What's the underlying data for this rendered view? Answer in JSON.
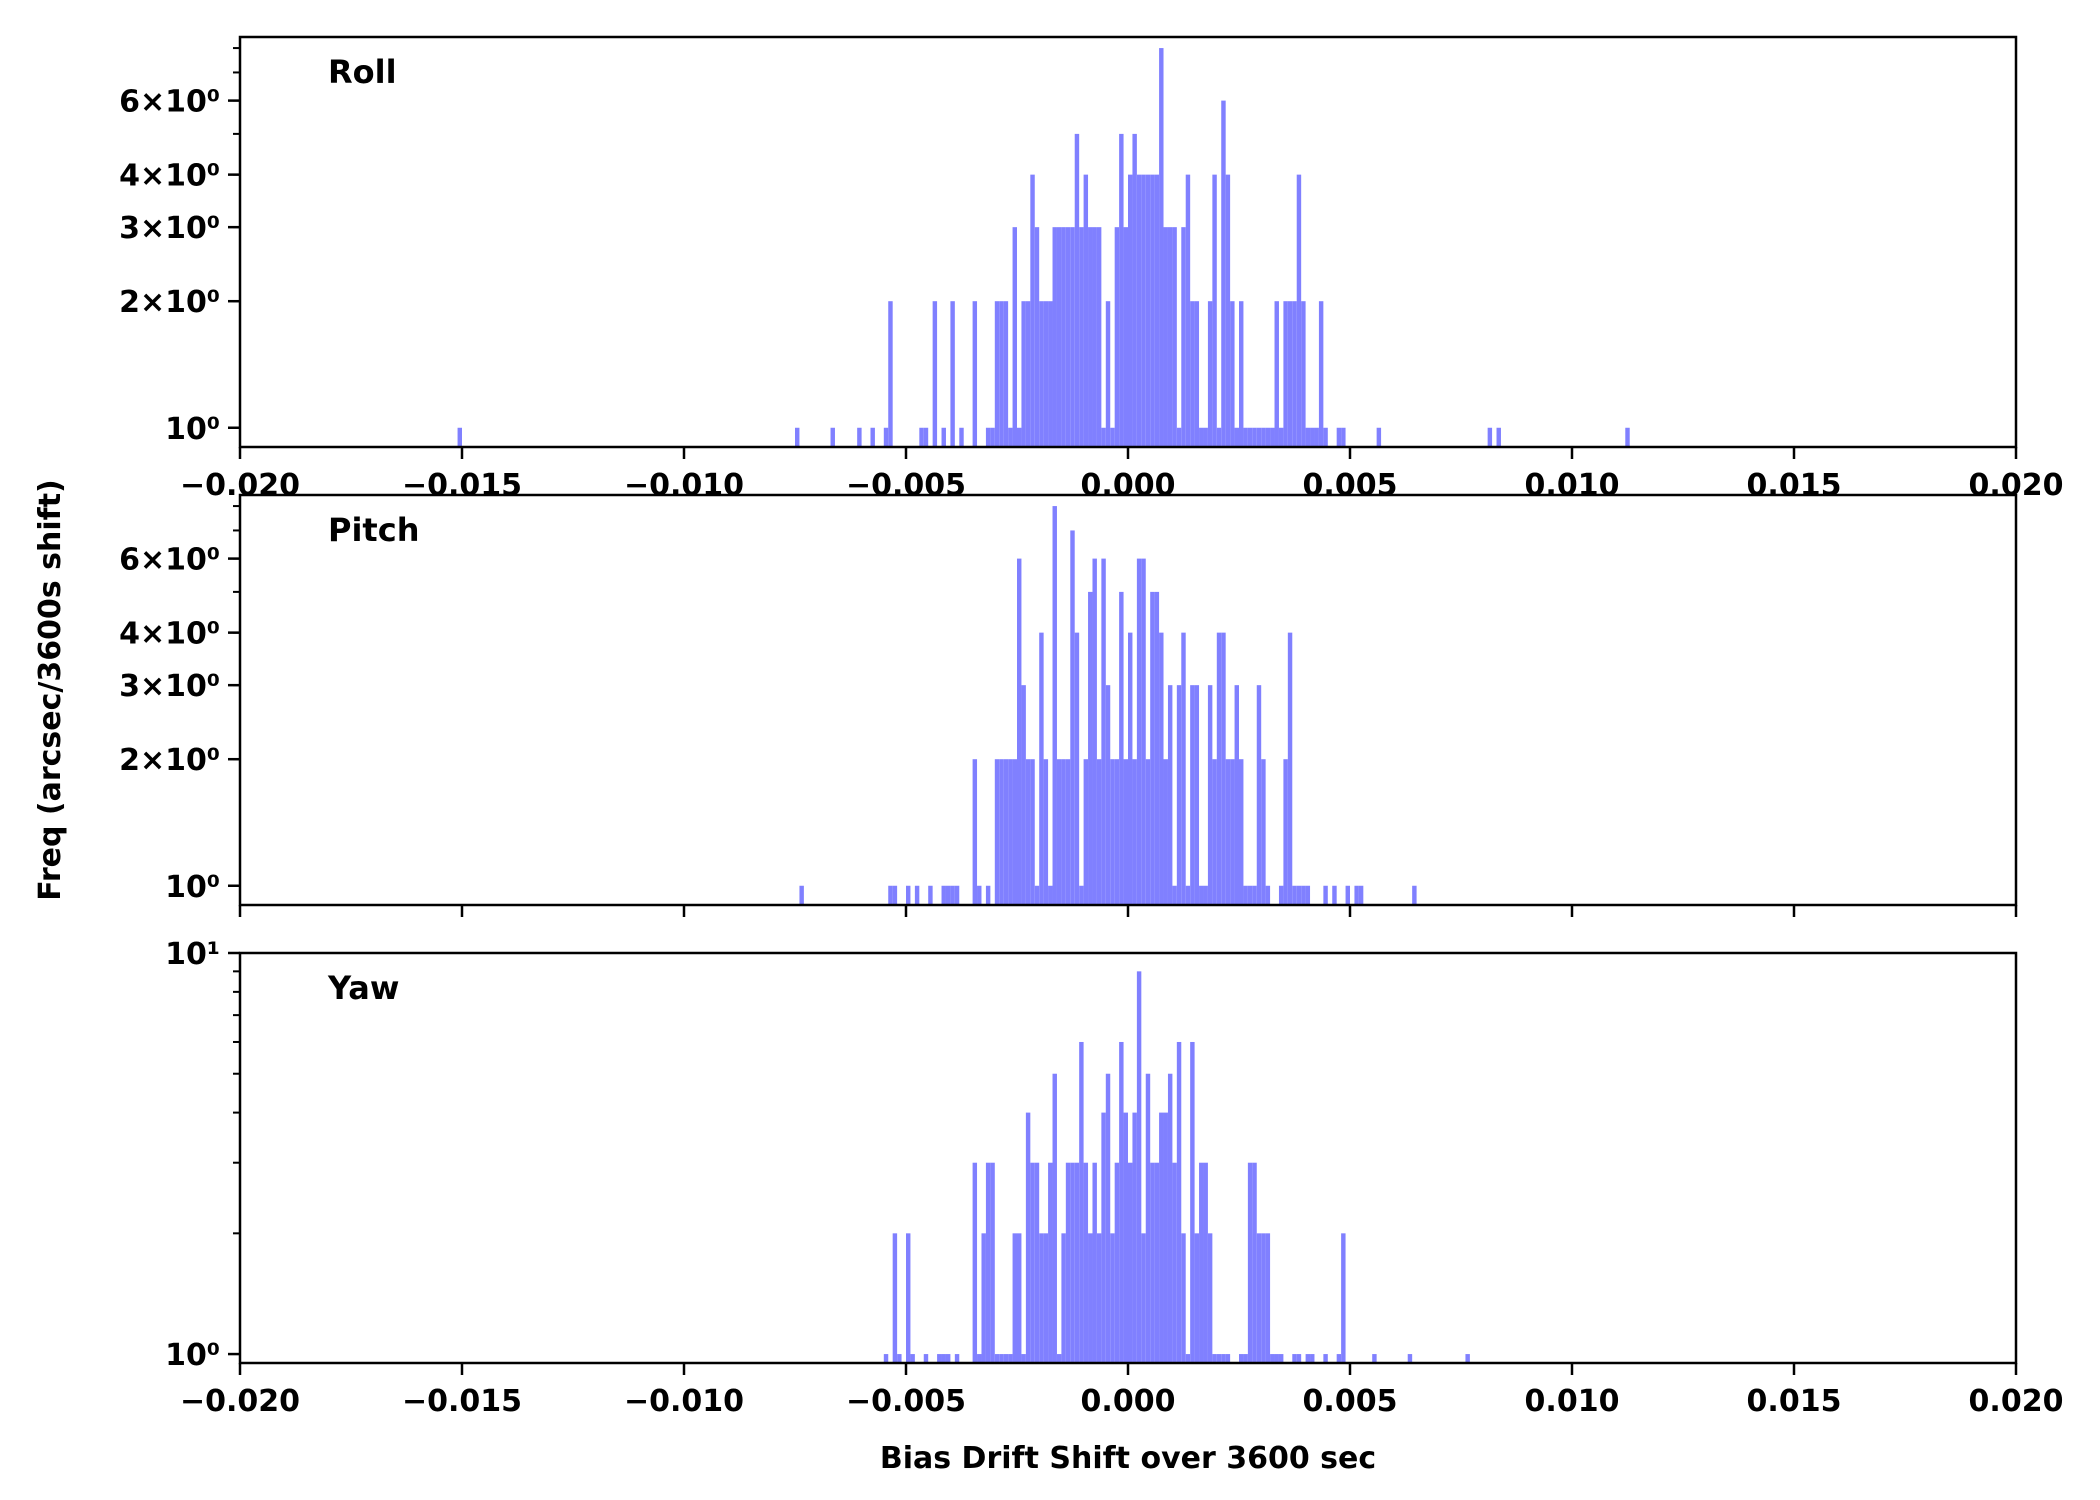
{
  "figure": {
    "xlabel": "Bias Drift Shift over 3600 sec",
    "ylabel": "Freq (arcsec/3600s shift)",
    "bar_color": "#8080ff"
  },
  "chart_data": [
    {
      "type": "bar",
      "label": "Roll",
      "yscale": "log",
      "xlim": [
        -0.02,
        0.02
      ],
      "ylim": [
        0.9,
        8.5
      ],
      "xticks": [
        -0.02,
        -0.015,
        -0.01,
        -0.005,
        0.0,
        0.005,
        0.01,
        0.015,
        0.02
      ],
      "xtick_labels": [
        "−0.020",
        "−0.015",
        "−0.010",
        "−0.005",
        "0.000",
        "0.005",
        "0.010",
        "0.015",
        "0.020"
      ],
      "yticks": [
        1,
        2,
        3,
        4,
        6
      ],
      "ytick_labels": [
        "10⁰",
        "2×10⁰",
        "3×10⁰",
        "4×10⁰",
        "6×10⁰"
      ],
      "bin_width": 0.0001,
      "bins": [
        [
          -0.0151,
          1
        ],
        [
          -0.0075,
          1
        ],
        [
          -0.0067,
          1
        ],
        [
          -0.0061,
          1
        ],
        [
          -0.0058,
          1
        ],
        [
          -0.0055,
          1
        ],
        [
          -0.0054,
          2
        ],
        [
          -0.0047,
          1
        ],
        [
          -0.0046,
          1
        ],
        [
          -0.0044,
          2
        ],
        [
          -0.0042,
          1
        ],
        [
          -0.004,
          2
        ],
        [
          -0.0038,
          1
        ],
        [
          -0.0035,
          2
        ],
        [
          -0.0032,
          1
        ],
        [
          -0.0031,
          1
        ],
        [
          -0.003,
          2
        ],
        [
          -0.0029,
          2
        ],
        [
          -0.0028,
          2
        ],
        [
          -0.0027,
          1
        ],
        [
          -0.0026,
          3
        ],
        [
          -0.0025,
          1
        ],
        [
          -0.0024,
          2
        ],
        [
          -0.0023,
          2
        ],
        [
          -0.0022,
          4
        ],
        [
          -0.0021,
          3
        ],
        [
          -0.002,
          2
        ],
        [
          -0.0019,
          2
        ],
        [
          -0.0018,
          2
        ],
        [
          -0.0017,
          3
        ],
        [
          -0.0016,
          3
        ],
        [
          -0.0015,
          3
        ],
        [
          -0.0014,
          3
        ],
        [
          -0.0013,
          3
        ],
        [
          -0.0012,
          5
        ],
        [
          -0.0011,
          3
        ],
        [
          -0.001,
          4
        ],
        [
          -0.0009,
          3
        ],
        [
          -0.0008,
          3
        ],
        [
          -0.0007,
          3
        ],
        [
          -0.0006,
          1
        ],
        [
          -0.0005,
          2
        ],
        [
          -0.0004,
          1
        ],
        [
          -0.0003,
          3
        ],
        [
          -0.0002,
          5
        ],
        [
          -0.0001,
          3
        ],
        [
          0.0,
          4
        ],
        [
          0.0001,
          5
        ],
        [
          0.0002,
          4
        ],
        [
          0.0003,
          4
        ],
        [
          0.0004,
          4
        ],
        [
          0.0005,
          4
        ],
        [
          0.0006,
          4
        ],
        [
          0.0007,
          8
        ],
        [
          0.0008,
          3
        ],
        [
          0.0009,
          3
        ],
        [
          0.001,
          3
        ],
        [
          0.0011,
          1
        ],
        [
          0.0012,
          3
        ],
        [
          0.0013,
          4
        ],
        [
          0.0014,
          2
        ],
        [
          0.0015,
          2
        ],
        [
          0.0016,
          1
        ],
        [
          0.0017,
          1
        ],
        [
          0.0018,
          2
        ],
        [
          0.0019,
          4
        ],
        [
          0.002,
          1
        ],
        [
          0.0021,
          6
        ],
        [
          0.0022,
          4
        ],
        [
          0.0023,
          2
        ],
        [
          0.0024,
          1
        ],
        [
          0.0025,
          2
        ],
        [
          0.0026,
          1
        ],
        [
          0.0027,
          1
        ],
        [
          0.0028,
          1
        ],
        [
          0.0029,
          1
        ],
        [
          0.003,
          1
        ],
        [
          0.0031,
          1
        ],
        [
          0.0032,
          1
        ],
        [
          0.0033,
          2
        ],
        [
          0.0034,
          1
        ],
        [
          0.0035,
          2
        ],
        [
          0.0036,
          2
        ],
        [
          0.0037,
          2
        ],
        [
          0.0038,
          4
        ],
        [
          0.0039,
          2
        ],
        [
          0.004,
          1
        ],
        [
          0.0041,
          1
        ],
        [
          0.0042,
          1
        ],
        [
          0.0043,
          2
        ],
        [
          0.0044,
          1
        ],
        [
          0.0047,
          1
        ],
        [
          0.0048,
          1
        ],
        [
          0.0056,
          1
        ],
        [
          0.0081,
          1
        ],
        [
          0.0083,
          1
        ],
        [
          0.0112,
          1
        ]
      ]
    },
    {
      "type": "bar",
      "label": "Pitch",
      "yscale": "log",
      "xlim": [
        -0.02,
        0.02
      ],
      "ylim": [
        0.9,
        8.5
      ],
      "xticks": [
        -0.02,
        -0.015,
        -0.01,
        -0.005,
        0.0,
        0.005,
        0.01,
        0.015,
        0.02
      ],
      "yticks": [
        1,
        2,
        3,
        4,
        6
      ],
      "ytick_labels": [
        "10⁰",
        "2×10⁰",
        "3×10⁰",
        "4×10⁰",
        "6×10⁰"
      ],
      "bin_width": 0.0001,
      "bins": [
        [
          -0.0074,
          1
        ],
        [
          -0.0054,
          1
        ],
        [
          -0.0053,
          1
        ],
        [
          -0.005,
          1
        ],
        [
          -0.0048,
          1
        ],
        [
          -0.0045,
          1
        ],
        [
          -0.0042,
          1
        ],
        [
          -0.0041,
          1
        ],
        [
          -0.004,
          1
        ],
        [
          -0.0039,
          1
        ],
        [
          -0.0035,
          2
        ],
        [
          -0.0034,
          1
        ],
        [
          -0.0032,
          1
        ],
        [
          -0.003,
          2
        ],
        [
          -0.0029,
          2
        ],
        [
          -0.0028,
          2
        ],
        [
          -0.0027,
          2
        ],
        [
          -0.0026,
          2
        ],
        [
          -0.0025,
          6
        ],
        [
          -0.0024,
          3
        ],
        [
          -0.0023,
          2
        ],
        [
          -0.0022,
          2
        ],
        [
          -0.0021,
          1
        ],
        [
          -0.002,
          4
        ],
        [
          -0.0019,
          2
        ],
        [
          -0.0018,
          1
        ],
        [
          -0.0017,
          8
        ],
        [
          -0.0016,
          2
        ],
        [
          -0.0015,
          2
        ],
        [
          -0.0014,
          2
        ],
        [
          -0.0013,
          7
        ],
        [
          -0.0012,
          4
        ],
        [
          -0.0011,
          1
        ],
        [
          -0.001,
          2
        ],
        [
          -0.0009,
          5
        ],
        [
          -0.0008,
          6
        ],
        [
          -0.0007,
          2
        ],
        [
          -0.0006,
          6
        ],
        [
          -0.0005,
          3
        ],
        [
          -0.0004,
          2
        ],
        [
          -0.0003,
          2
        ],
        [
          -0.0002,
          5
        ],
        [
          -0.0001,
          2
        ],
        [
          0.0,
          4
        ],
        [
          0.0001,
          2
        ],
        [
          0.0002,
          6
        ],
        [
          0.0003,
          6
        ],
        [
          0.0004,
          2
        ],
        [
          0.0005,
          5
        ],
        [
          0.0006,
          5
        ],
        [
          0.0007,
          4
        ],
        [
          0.0008,
          2
        ],
        [
          0.0009,
          3
        ],
        [
          0.001,
          1
        ],
        [
          0.0011,
          3
        ],
        [
          0.0012,
          4
        ],
        [
          0.0013,
          1
        ],
        [
          0.0014,
          3
        ],
        [
          0.0015,
          3
        ],
        [
          0.0016,
          1
        ],
        [
          0.0017,
          1
        ],
        [
          0.0018,
          3
        ],
        [
          0.0019,
          2
        ],
        [
          0.002,
          4
        ],
        [
          0.0021,
          4
        ],
        [
          0.0022,
          2
        ],
        [
          0.0023,
          2
        ],
        [
          0.0024,
          3
        ],
        [
          0.0025,
          2
        ],
        [
          0.0026,
          1
        ],
        [
          0.0027,
          1
        ],
        [
          0.0028,
          1
        ],
        [
          0.0029,
          3
        ],
        [
          0.003,
          2
        ],
        [
          0.0031,
          1
        ],
        [
          0.0034,
          1
        ],
        [
          0.0035,
          2
        ],
        [
          0.0036,
          4
        ],
        [
          0.0037,
          1
        ],
        [
          0.0038,
          1
        ],
        [
          0.0039,
          1
        ],
        [
          0.004,
          1
        ],
        [
          0.0044,
          1
        ],
        [
          0.0046,
          1
        ],
        [
          0.0049,
          1
        ],
        [
          0.0051,
          1
        ],
        [
          0.0052,
          1
        ],
        [
          0.0064,
          1
        ]
      ]
    },
    {
      "type": "bar",
      "label": "Yaw",
      "yscale": "log",
      "xlim": [
        -0.02,
        0.02
      ],
      "ylim": [
        0.95,
        10
      ],
      "xticks": [
        -0.02,
        -0.015,
        -0.01,
        -0.005,
        0.0,
        0.005,
        0.01,
        0.015,
        0.02
      ],
      "xtick_labels": [
        "−0.020",
        "−0.015",
        "−0.010",
        "−0.005",
        "0.000",
        "0.005",
        "0.010",
        "0.015",
        "0.020"
      ],
      "yticks": [
        1,
        10
      ],
      "ytick_labels": [
        "10⁰",
        "10¹"
      ],
      "bin_width": 0.0001,
      "bins": [
        [
          -0.0055,
          1
        ],
        [
          -0.0053,
          2
        ],
        [
          -0.0052,
          1
        ],
        [
          -0.005,
          2
        ],
        [
          -0.0049,
          1
        ],
        [
          -0.0046,
          1
        ],
        [
          -0.0043,
          1
        ],
        [
          -0.0042,
          1
        ],
        [
          -0.0041,
          1
        ],
        [
          -0.0039,
          1
        ],
        [
          -0.0035,
          3
        ],
        [
          -0.0034,
          1
        ],
        [
          -0.0033,
          2
        ],
        [
          -0.0032,
          3
        ],
        [
          -0.0031,
          3
        ],
        [
          -0.003,
          1
        ],
        [
          -0.0029,
          1
        ],
        [
          -0.0028,
          1
        ],
        [
          -0.0027,
          1
        ],
        [
          -0.0026,
          2
        ],
        [
          -0.0025,
          2
        ],
        [
          -0.0024,
          1
        ],
        [
          -0.0023,
          4
        ],
        [
          -0.0022,
          3
        ],
        [
          -0.0021,
          3
        ],
        [
          -0.002,
          2
        ],
        [
          -0.0019,
          2
        ],
        [
          -0.0018,
          3
        ],
        [
          -0.0017,
          5
        ],
        [
          -0.0016,
          1
        ],
        [
          -0.0015,
          2
        ],
        [
          -0.0014,
          3
        ],
        [
          -0.0013,
          3
        ],
        [
          -0.0012,
          3
        ],
        [
          -0.0011,
          6
        ],
        [
          -0.001,
          3
        ],
        [
          -0.0009,
          2
        ],
        [
          -0.0008,
          3
        ],
        [
          -0.0007,
          2
        ],
        [
          -0.0006,
          4
        ],
        [
          -0.0005,
          5
        ],
        [
          -0.0004,
          2
        ],
        [
          -0.0003,
          3
        ],
        [
          -0.0002,
          6
        ],
        [
          -0.0001,
          4
        ],
        [
          0.0,
          3
        ],
        [
          0.0001,
          4
        ],
        [
          0.0002,
          9
        ],
        [
          0.0003,
          2
        ],
        [
          0.0004,
          5
        ],
        [
          0.0005,
          3
        ],
        [
          0.0006,
          3
        ],
        [
          0.0007,
          4
        ],
        [
          0.0008,
          4
        ],
        [
          0.0009,
          5
        ],
        [
          0.001,
          3
        ],
        [
          0.0011,
          6
        ],
        [
          0.0012,
          2
        ],
        [
          0.0013,
          1
        ],
        [
          0.0014,
          6
        ],
        [
          0.0015,
          2
        ],
        [
          0.0016,
          3
        ],
        [
          0.0017,
          3
        ],
        [
          0.0018,
          2
        ],
        [
          0.0019,
          1
        ],
        [
          0.002,
          1
        ],
        [
          0.0021,
          1
        ],
        [
          0.0022,
          1
        ],
        [
          0.0025,
          1
        ],
        [
          0.0026,
          1
        ],
        [
          0.0027,
          3
        ],
        [
          0.0028,
          3
        ],
        [
          0.0029,
          2
        ],
        [
          0.003,
          2
        ],
        [
          0.0031,
          2
        ],
        [
          0.0032,
          1
        ],
        [
          0.0033,
          1
        ],
        [
          0.0034,
          1
        ],
        [
          0.0037,
          1
        ],
        [
          0.0038,
          1
        ],
        [
          0.004,
          1
        ],
        [
          0.0041,
          1
        ],
        [
          0.0044,
          1
        ],
        [
          0.0047,
          1
        ],
        [
          0.0048,
          2
        ],
        [
          0.0055,
          1
        ],
        [
          0.0063,
          1
        ],
        [
          0.0076,
          1
        ]
      ]
    }
  ]
}
